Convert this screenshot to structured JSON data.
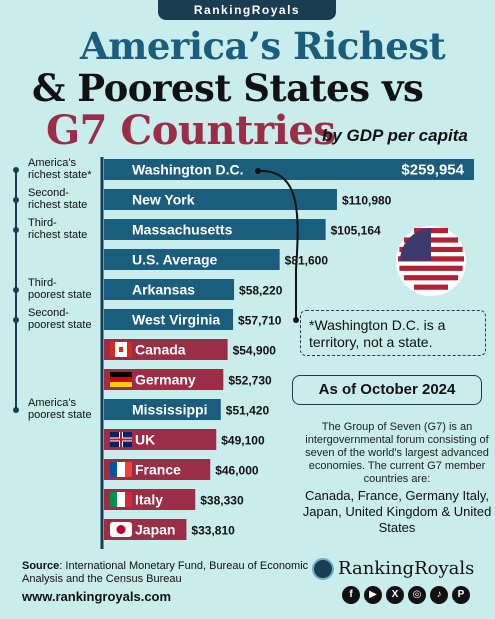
{
  "brand_top": "RankingRoyals",
  "title": {
    "line1": "America’s Richest",
    "line2": "& Poorest States",
    "line2_vs": "vs",
    "line3": "G7 Countries",
    "subtitle": "by GDP per capita"
  },
  "annotation": {
    "footnote": "*Washington D.C. is a territory, not a state.",
    "as_of": "As of October 2024",
    "g7_description": "The Group of Seven (G7) is an intergovernmental forum consisting of seven of the world's largest advanced economies. The current G7 member countries are:",
    "g7_members": "Canada, France, Germany Italy, Japan, United Kingdom & United States"
  },
  "side_labels": [
    {
      "row": 0,
      "text": "America's richest state*"
    },
    {
      "row": 1,
      "text": "Second-richest state"
    },
    {
      "row": 2,
      "text": "Third-richest state"
    },
    {
      "row": 4,
      "text": "Third-poorest state"
    },
    {
      "row": 5,
      "text": "Second-poorest state"
    },
    {
      "row": 8,
      "text": "America's poorest state"
    }
  ],
  "colors": {
    "state": "#1a5d7c",
    "country": "#9b2d46",
    "axis": "#1a3d52"
  },
  "chart_data": {
    "type": "bar",
    "orientation": "horizontal",
    "categories": [
      "Washington D.C.",
      "New York",
      "Massachusetts",
      "U.S. Average",
      "Arkansas",
      "West Virginia",
      "Canada",
      "Germany",
      "Mississippi",
      "UK",
      "France",
      "Italy",
      "Japan"
    ],
    "values": [
      259954,
      110980,
      105164,
      81600,
      58220,
      57710,
      54900,
      52730,
      51420,
      49100,
      46000,
      38330,
      33810
    ],
    "value_labels": [
      "$259,954",
      "$110,980",
      "$105,164",
      "$81,600",
      "$58,220",
      "$57,710",
      "$54,900",
      "$52,730",
      "$51,420",
      "$49,100",
      "$46,000",
      "$38,330",
      "$33,810"
    ],
    "kinds": [
      "state",
      "state",
      "state",
      "state",
      "state",
      "state",
      "country",
      "country",
      "state",
      "country",
      "country",
      "country",
      "country"
    ],
    "flags": [
      "",
      "",
      "",
      "",
      "",
      "",
      "canada-flag-icon",
      "germany-flag-icon",
      "",
      "uk-flag-icon",
      "france-flag-icon",
      "italy-flag-icon",
      "japan-flag-icon"
    ]
  },
  "source": {
    "label": "Source",
    "text": ": International Monetary Fund, Bureau of Economic Analysis and the Census Bureau"
  },
  "website": "www.rankingroyals.com",
  "brand_bottom": "RankingRoyals",
  "socials": [
    "facebook-icon",
    "youtube-icon",
    "x-icon",
    "instagram-icon",
    "tiktok-icon",
    "pinterest-icon"
  ]
}
